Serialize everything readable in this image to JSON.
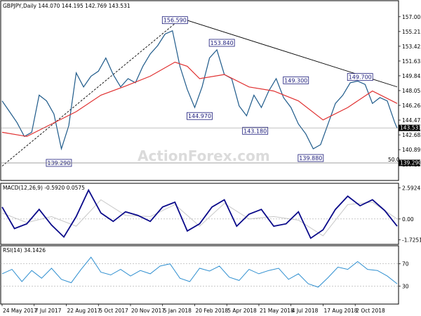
{
  "chart_data": [
    {
      "type": "candlestick",
      "title": "GBPJPY,Daily  144.070 144.195 142.769 143.531",
      "ylim": [
        137.5,
        157.5
      ],
      "y_ticks": [
        157.005,
        155.215,
        153.425,
        151.635,
        149.845,
        148.055,
        146.265,
        144.475,
        142.685,
        140.895,
        139.105
      ],
      "y_tick_labels": [
        "157.005",
        "155.215",
        "153.425",
        "151.635",
        "149.845",
        "148.055",
        "146.265",
        "144.475",
        "142.685",
        "140.895",
        "139.105"
      ],
      "last_price_label": "143.531",
      "last_price": 143.531,
      "fib_label": "50.0",
      "fib_price_label": "139.290",
      "fib_price": 139.29,
      "series": [
        {
          "name": "",
          "role": "price",
          "color": "#1e5a8a",
          "x": [
            0,
            6,
            12,
            18,
            24,
            30,
            36,
            42,
            48,
            54,
            60,
            66,
            72,
            78,
            84,
            90,
            96,
            102,
            108,
            114,
            120,
            126,
            132,
            138,
            144,
            150,
            156,
            162,
            168,
            174,
            180,
            186,
            192,
            198,
            204,
            210,
            216,
            222,
            228,
            234,
            240,
            246,
            252,
            258,
            264,
            270,
            276,
            282,
            288,
            294,
            300,
            306,
            312,
            318,
            320
          ],
          "values": [
            146.8,
            145.5,
            144.2,
            142.5,
            143.0,
            147.5,
            146.8,
            145.2,
            141.0,
            143.8,
            150.2,
            148.5,
            149.8,
            150.4,
            152.0,
            150.0,
            148.5,
            149.5,
            149.0,
            151.0,
            152.5,
            153.5,
            154.9,
            155.3,
            151.0,
            148.2,
            146.0,
            148.5,
            152.0,
            153.0,
            150.0,
            149.5,
            146.2,
            145.0,
            147.5,
            146.0,
            148.0,
            149.5,
            147.2,
            146.0,
            144.0,
            142.8,
            141.0,
            141.5,
            144.0,
            146.5,
            147.5,
            149.0,
            149.2,
            148.8,
            146.5,
            147.2,
            146.8,
            144.2,
            143.5
          ]
        },
        {
          "name": "",
          "role": "moving-average",
          "color": "#e03030",
          "x": [
            0,
            20,
            40,
            60,
            80,
            100,
            120,
            140,
            150,
            160,
            180,
            200,
            220,
            240,
            260,
            280,
            300,
            320
          ],
          "values": [
            143.0,
            142.5,
            144.0,
            145.5,
            147.5,
            148.6,
            149.8,
            151.5,
            151.0,
            149.5,
            150.0,
            148.5,
            148.0,
            146.8,
            144.5,
            146.0,
            148.0,
            146.5
          ]
        }
      ],
      "annotations": [
        {
          "text": "156.590",
          "x": 140,
          "y": 156.59
        },
        {
          "text": "153.840",
          "x": 178,
          "y": 153.84
        },
        {
          "text": "144.970",
          "x": 160,
          "y": 144.97
        },
        {
          "text": "149.300",
          "x": 238,
          "y": 149.3
        },
        {
          "text": "143.180",
          "x": 205,
          "y": 143.18
        },
        {
          "text": "149.700",
          "x": 290,
          "y": 149.7
        },
        {
          "text": "139.880",
          "x": 250,
          "y": 139.88
        },
        {
          "text": "139.290",
          "x": 46,
          "y": 139.29
        }
      ],
      "trendlines": [
        {
          "style": "solid",
          "from": {
            "x": 145,
            "y": 156.8
          },
          "to": {
            "x": 320,
            "y": 148.5
          }
        },
        {
          "style": "dashed",
          "from": {
            "x": 0,
            "y": 138.9
          },
          "to": {
            "x": 145,
            "y": 156.8
          }
        }
      ],
      "watermark": "ActionForex.com"
    },
    {
      "type": "line",
      "title": "MACD(12,26,9) -0.5920 0.0575",
      "ylim": [
        -2.0,
        2.8
      ],
      "y_ticks": [
        2.5924,
        0.0,
        -1.7251
      ],
      "y_tick_labels": [
        "2.5924",
        "0.00",
        "-1.7251"
      ],
      "series": [
        {
          "name": "",
          "role": "macd",
          "color": "#0a0a8a",
          "x": [
            0,
            10,
            20,
            30,
            40,
            50,
            60,
            70,
            80,
            90,
            100,
            110,
            120,
            130,
            140,
            150,
            160,
            170,
            180,
            190,
            200,
            210,
            220,
            230,
            240,
            250,
            260,
            270,
            280,
            290,
            300,
            310,
            320
          ],
          "values": [
            1.0,
            -0.8,
            -0.4,
            0.8,
            -0.5,
            -1.5,
            0.2,
            2.4,
            0.5,
            -0.2,
            0.6,
            0.3,
            -0.2,
            1.0,
            1.4,
            -1.0,
            -0.4,
            1.0,
            1.6,
            -0.6,
            0.4,
            0.8,
            -0.6,
            -0.4,
            0.6,
            -1.6,
            -0.9,
            0.8,
            1.9,
            1.1,
            1.6,
            0.7,
            -0.6
          ]
        },
        {
          "name": "",
          "role": "signal",
          "color": "#c8c8c8",
          "x": [
            0,
            20,
            40,
            60,
            80,
            100,
            120,
            140,
            160,
            180,
            200,
            220,
            240,
            260,
            280,
            300,
            320
          ],
          "values": [
            0.5,
            -0.3,
            0.2,
            -0.6,
            1.6,
            0.3,
            0.2,
            1.2,
            -0.6,
            1.3,
            0.0,
            0.2,
            -0.1,
            -1.4,
            1.2,
            1.4,
            0.0
          ]
        }
      ]
    },
    {
      "type": "line",
      "title": "RSI(14) 34.1426",
      "ylim": [
        0,
        100
      ],
      "y_ticks": [
        70,
        30
      ],
      "y_tick_labels": [
        "70",
        "30"
      ],
      "series": [
        {
          "name": "",
          "role": "rsi",
          "color": "#2f8fd0",
          "x": [
            0,
            8,
            16,
            24,
            32,
            40,
            48,
            56,
            64,
            72,
            80,
            88,
            96,
            104,
            112,
            120,
            128,
            136,
            144,
            152,
            160,
            168,
            176,
            184,
            192,
            200,
            208,
            216,
            224,
            232,
            240,
            248,
            256,
            264,
            272,
            280,
            288,
            296,
            304,
            312,
            320
          ],
          "values": [
            52,
            60,
            38,
            58,
            44,
            62,
            42,
            36,
            60,
            82,
            55,
            50,
            60,
            48,
            58,
            52,
            66,
            70,
            44,
            38,
            62,
            57,
            66,
            46,
            40,
            60,
            52,
            58,
            62,
            42,
            52,
            34,
            28,
            45,
            64,
            60,
            74,
            60,
            58,
            48,
            34
          ]
        }
      ]
    }
  ],
  "x_axis": {
    "tick_labels": [
      "24 May 2017",
      "7 Jul 2017",
      "22 Aug 2017",
      "5 Oct 2017",
      "20 Nov 2017",
      "5 Jan 2018",
      "20 Feb 2018",
      "5 Apr 2018",
      "21 May 2018",
      "4 Jul 2018",
      "17 Aug 2018",
      "2 Oct 2018"
    ],
    "tick_x": [
      0,
      26,
      52,
      78,
      104,
      130,
      156,
      182,
      208,
      234,
      260,
      286
    ]
  },
  "colors": {
    "background": "#ffffff",
    "grid": "#000000",
    "label_box": "#1a1a7a",
    "price_tag_bg": "#000000"
  }
}
